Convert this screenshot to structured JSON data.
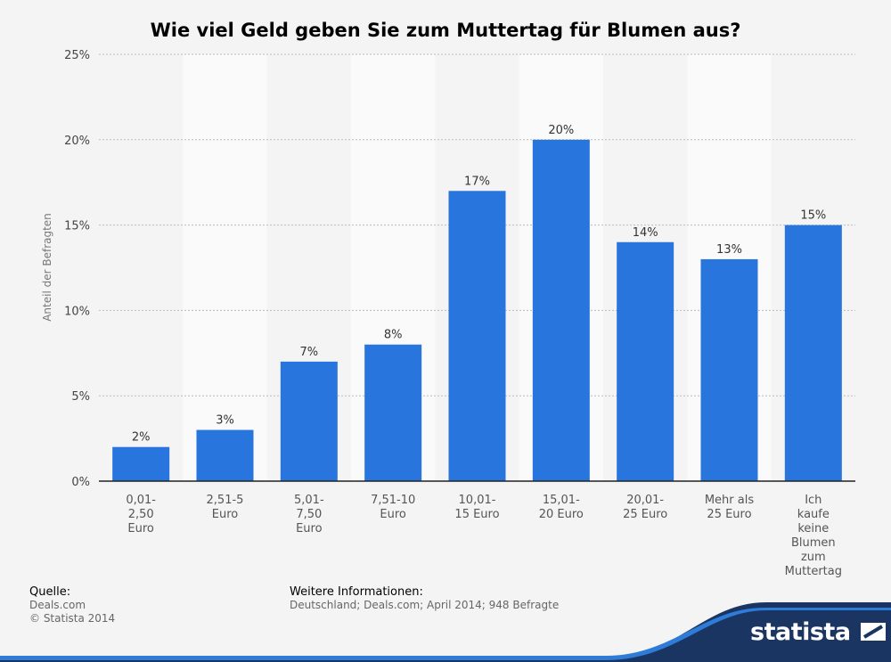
{
  "chart_data": {
    "type": "bar",
    "title": "Wie viel Geld geben Sie zum Muttertag für Blumen aus?",
    "ylabel": "Anteil der Befragten",
    "xlabel": "",
    "ylim": [
      0,
      25
    ],
    "yticks": [
      0,
      5,
      10,
      15,
      20,
      25
    ],
    "ytick_labels": [
      "0%",
      "5%",
      "10%",
      "15%",
      "20%",
      "25%"
    ],
    "categories": [
      [
        "0,01-",
        "2,50",
        "Euro"
      ],
      [
        "2,51-5",
        "Euro"
      ],
      [
        "5,01-",
        "7,50",
        "Euro"
      ],
      [
        "7,51-10",
        "Euro"
      ],
      [
        "10,01-",
        "15 Euro"
      ],
      [
        "15,01-",
        "20 Euro"
      ],
      [
        "20,01-",
        "25 Euro"
      ],
      [
        "Mehr als",
        "25 Euro"
      ],
      [
        "Ich",
        "kaufe",
        "keine",
        "Blumen",
        "zum",
        "Muttertag"
      ]
    ],
    "values": [
      2,
      3,
      7,
      8,
      17,
      20,
      14,
      13,
      15
    ],
    "value_labels": [
      "2%",
      "3%",
      "7%",
      "8%",
      "17%",
      "20%",
      "14%",
      "13%",
      "15%"
    ],
    "bar_color": "#2876dd",
    "grid": true
  },
  "footer": {
    "source_label": "Quelle:",
    "source_lines": [
      "Deals.com",
      "© Statista 2014"
    ],
    "info_label": "Weitere Informationen:",
    "info_text": "Deutschland; Deals.com; April 2014; 948 Befragte"
  },
  "brand": {
    "logo": "statista",
    "accent": "#1d62c9",
    "dark": "#1a3561"
  }
}
